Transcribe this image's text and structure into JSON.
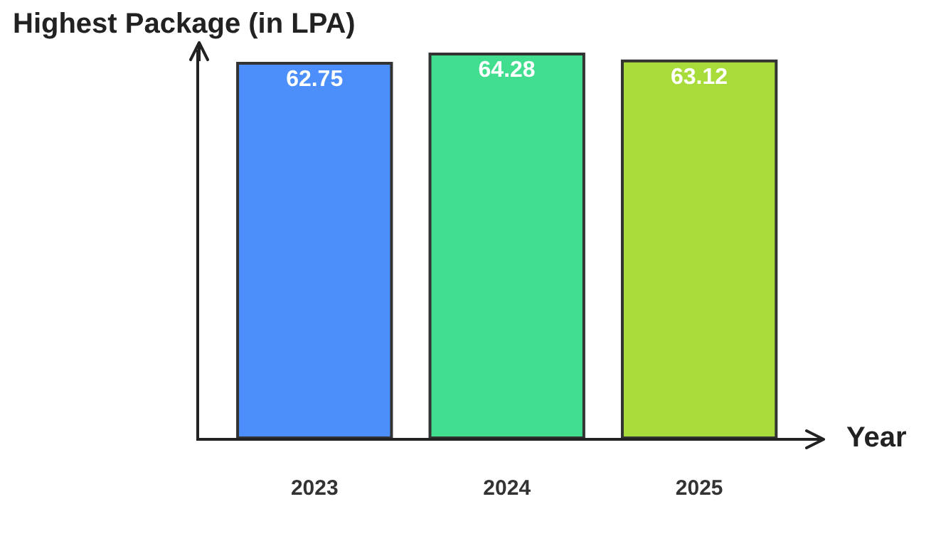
{
  "chart_data": {
    "type": "bar",
    "ylabel": "Highest Package (in LPA)",
    "xlabel": "Year",
    "categories": [
      "2023",
      "2024",
      "2025"
    ],
    "values": [
      62.75,
      64.28,
      63.12
    ],
    "colors": [
      "#4d8ffa",
      "#42de8f",
      "#a8dc3a"
    ],
    "ylim": [
      0,
      65
    ],
    "data_labels": true
  }
}
